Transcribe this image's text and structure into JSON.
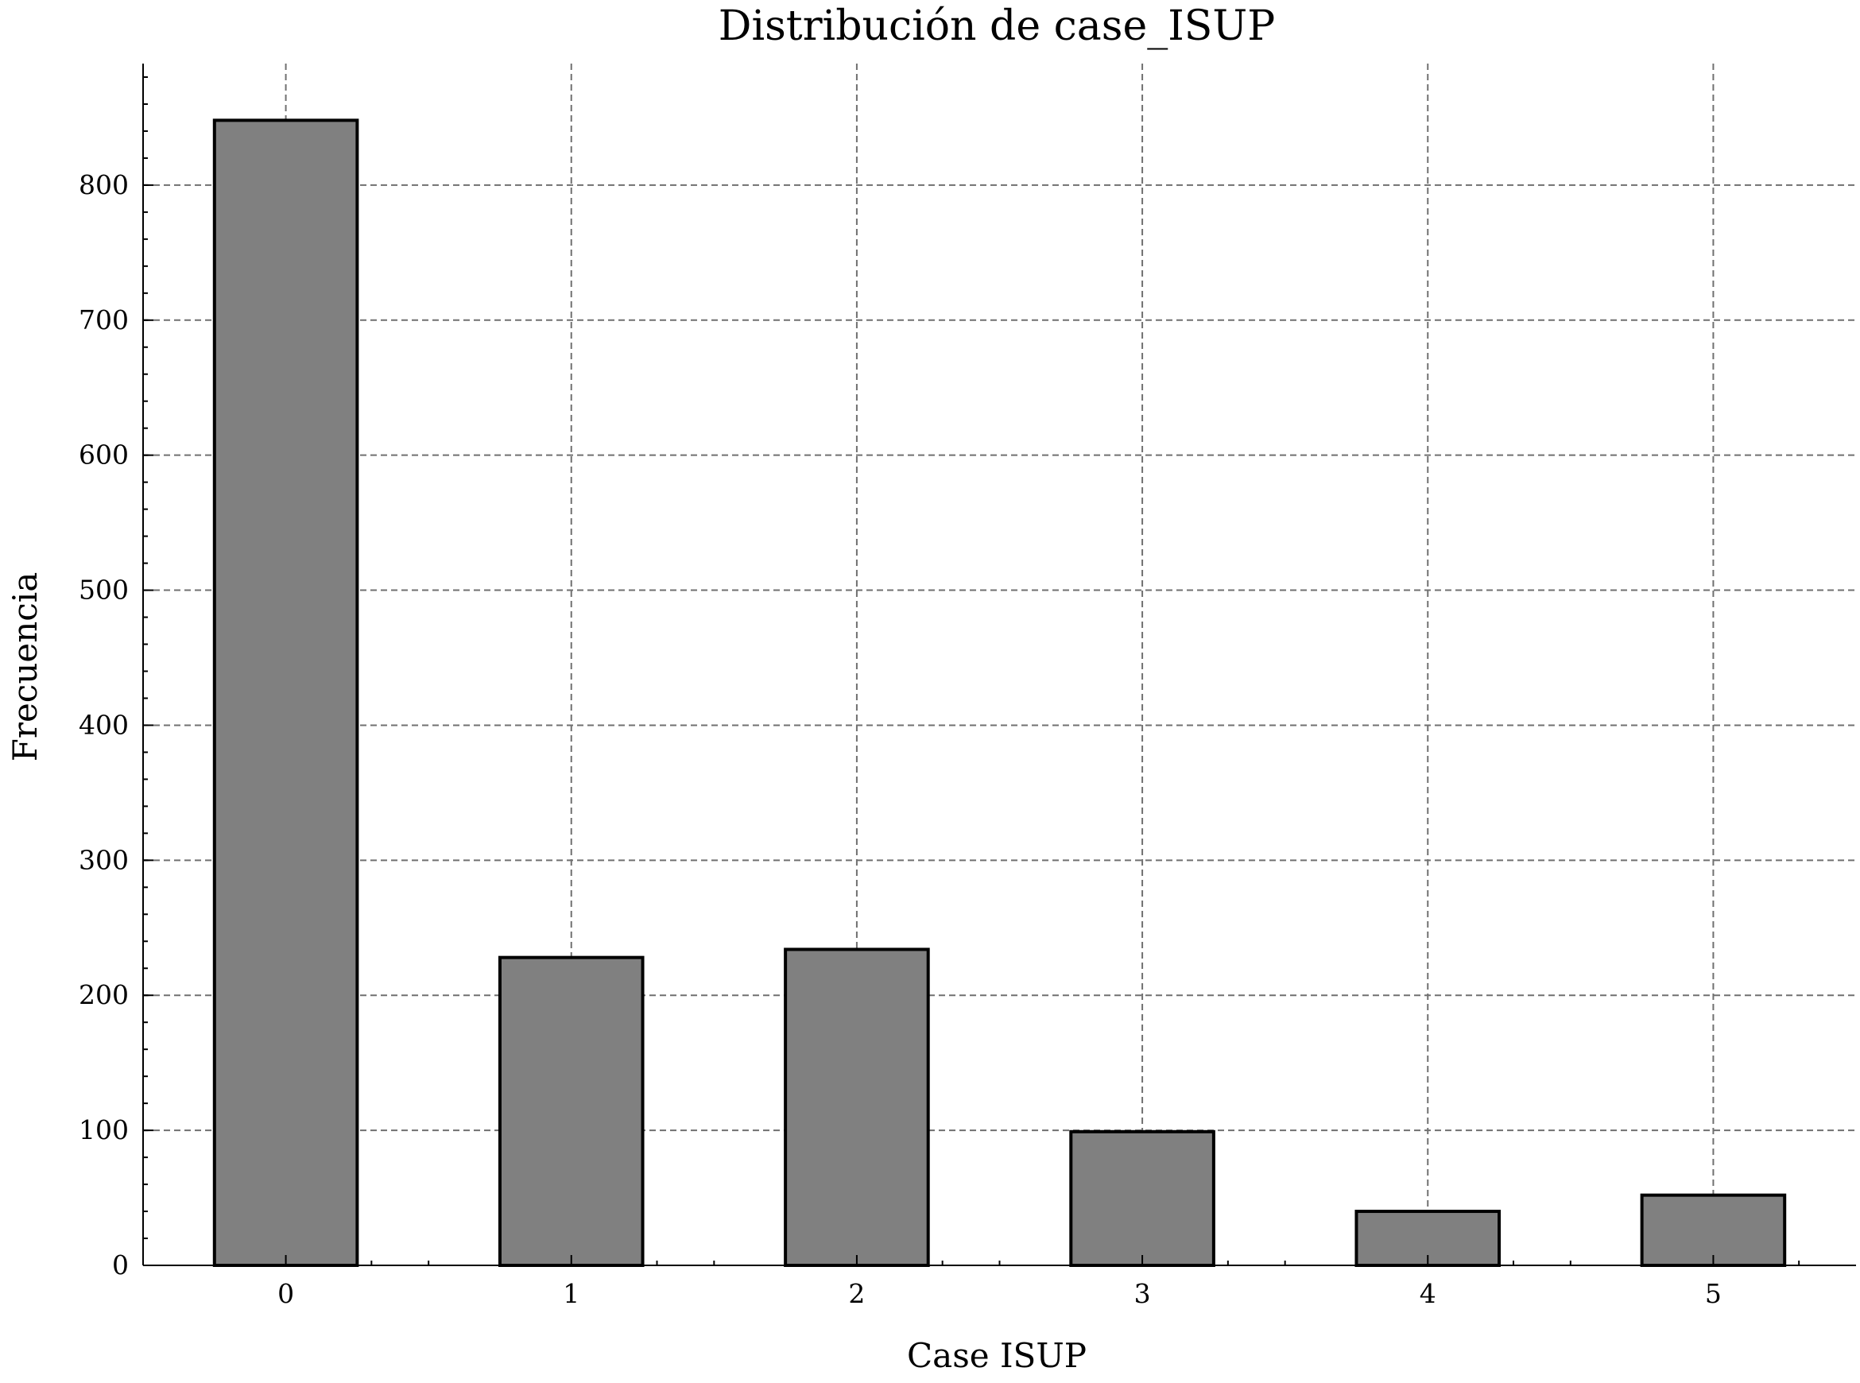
{
  "chart_data": {
    "type": "bar",
    "title": "Distribución de case_ISUP",
    "xlabel": "Case ISUP",
    "ylabel": "Frecuencia",
    "categories": [
      "0",
      "1",
      "2",
      "3",
      "4",
      "5"
    ],
    "values": [
      848,
      228,
      234,
      99,
      40,
      52
    ],
    "ylim": [
      0,
      890
    ],
    "yticks": [
      0,
      100,
      200,
      300,
      400,
      500,
      600,
      700,
      800
    ],
    "y_minor_step": 20,
    "grid": true,
    "legend": "none",
    "colors": {
      "bar_fill": "#808080",
      "bar_edge": "#000000",
      "grid": "#707070"
    }
  }
}
